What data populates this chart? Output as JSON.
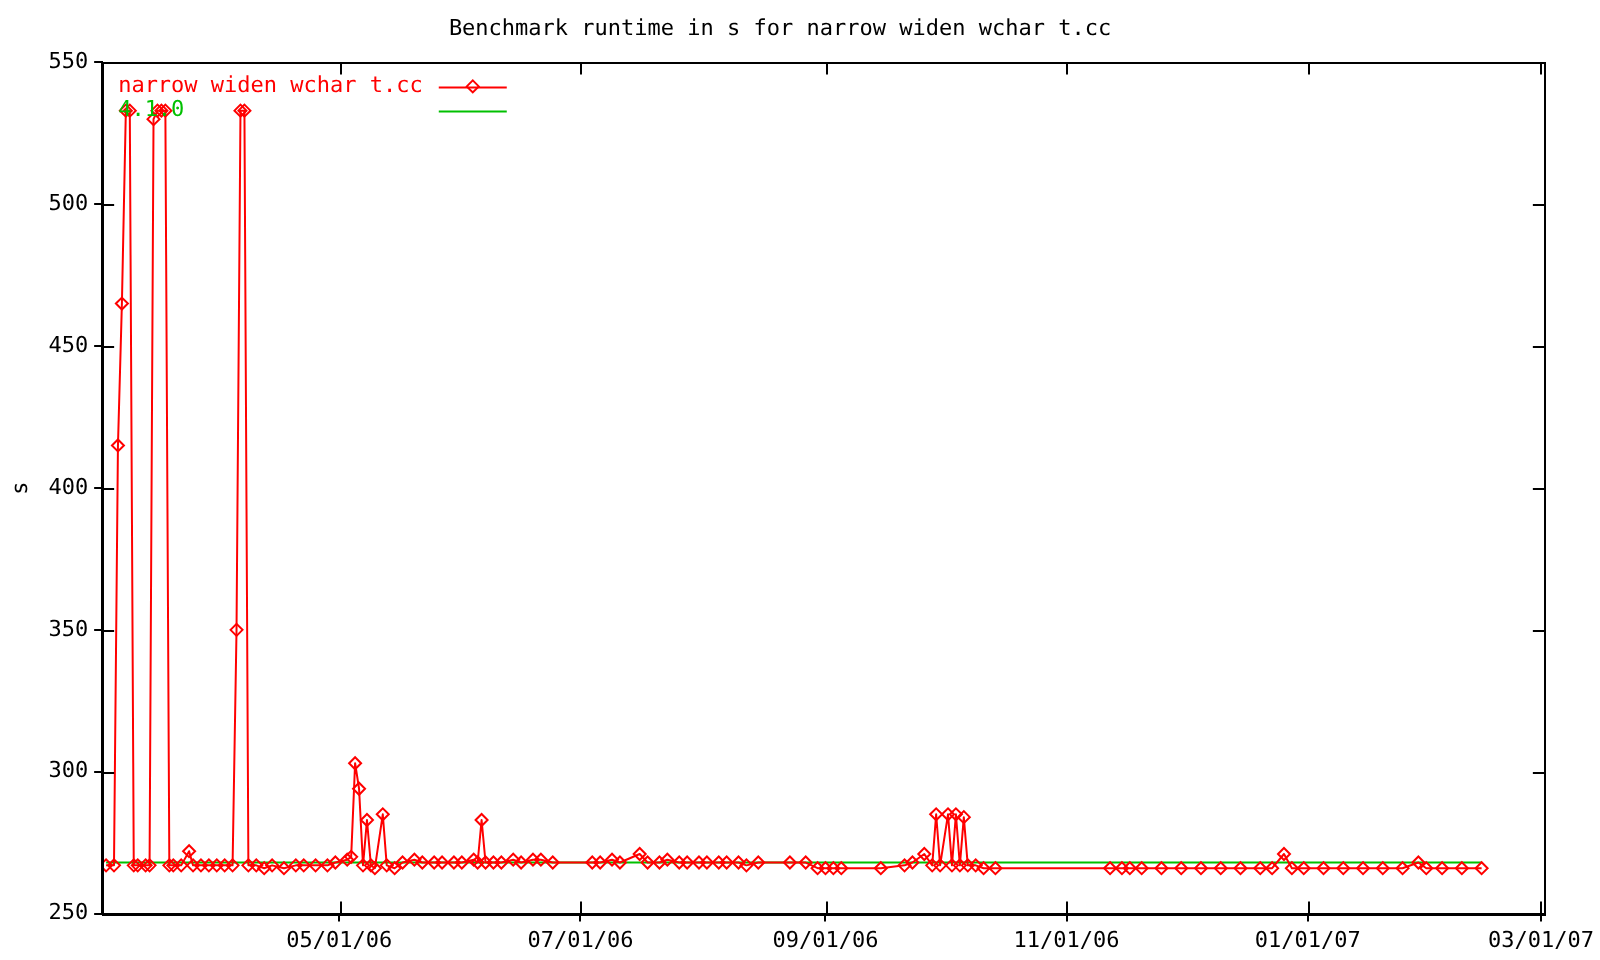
{
  "chart_data": {
    "type": "line",
    "title": "Benchmark runtime in s for narrow widen wchar t.cc",
    "ylabel": "s",
    "xlim": [
      "2006-03-02",
      "2007-03-02"
    ],
    "xticks": [
      {
        "value": "2006-05-01",
        "label": "05/01/06"
      },
      {
        "value": "2006-07-01",
        "label": "07/01/06"
      },
      {
        "value": "2006-09-01",
        "label": "09/01/06"
      },
      {
        "value": "2006-11-01",
        "label": "11/01/06"
      },
      {
        "value": "2007-01-01",
        "label": "01/01/07"
      },
      {
        "value": "2007-03-01",
        "label": "03/01/07"
      }
    ],
    "ylim": [
      250,
      550
    ],
    "yticks": [
      250,
      300,
      350,
      400,
      450,
      500,
      550
    ],
    "grid": false,
    "legend": "top left",
    "series": [
      {
        "name": "narrow widen wchar t.cc",
        "color": "#ff0000",
        "marker": "diamond",
        "x": [
          "2006-03-03",
          "2006-03-05",
          "2006-03-06",
          "2006-03-07",
          "2006-03-08",
          "2006-03-09",
          "2006-03-10",
          "2006-03-11",
          "2006-03-13",
          "2006-03-14",
          "2006-03-15",
          "2006-03-16",
          "2006-03-17",
          "2006-03-18",
          "2006-03-19",
          "2006-03-20",
          "2006-03-22",
          "2006-03-24",
          "2006-03-25",
          "2006-03-27",
          "2006-03-29",
          "2006-03-31",
          "2006-04-02",
          "2006-04-04",
          "2006-04-05",
          "2006-04-06",
          "2006-04-07",
          "2006-04-08",
          "2006-04-10",
          "2006-04-12",
          "2006-04-14",
          "2006-04-17",
          "2006-04-20",
          "2006-04-22",
          "2006-04-25",
          "2006-04-28",
          "2006-04-30",
          "2006-05-03",
          "2006-05-04",
          "2006-05-05",
          "2006-05-06",
          "2006-05-07",
          "2006-05-08",
          "2006-05-09",
          "2006-05-10",
          "2006-05-12",
          "2006-05-13",
          "2006-05-15",
          "2006-05-17",
          "2006-05-20",
          "2006-05-22",
          "2006-05-25",
          "2006-05-27",
          "2006-05-30",
          "2006-06-01",
          "2006-06-04",
          "2006-06-05",
          "2006-06-06",
          "2006-06-07",
          "2006-06-09",
          "2006-06-11",
          "2006-06-14",
          "2006-06-16",
          "2006-06-19",
          "2006-06-21",
          "2006-06-24",
          "2006-07-04",
          "2006-07-06",
          "2006-07-09",
          "2006-07-11",
          "2006-07-16",
          "2006-07-18",
          "2006-07-21",
          "2006-07-23",
          "2006-07-26",
          "2006-07-28",
          "2006-07-31",
          "2006-08-02",
          "2006-08-05",
          "2006-08-07",
          "2006-08-10",
          "2006-08-12",
          "2006-08-15",
          "2006-08-23",
          "2006-08-27",
          "2006-08-30",
          "2006-09-01",
          "2006-09-03",
          "2006-09-05",
          "2006-09-15",
          "2006-09-21",
          "2006-09-23",
          "2006-09-26",
          "2006-09-28",
          "2006-09-29",
          "2006-09-30",
          "2006-10-02",
          "2006-10-03",
          "2006-10-04",
          "2006-10-05",
          "2006-10-06",
          "2006-10-07",
          "2006-10-09",
          "2006-10-11",
          "2006-10-14",
          "2006-11-12",
          "2006-11-15",
          "2006-11-17",
          "2006-11-20",
          "2006-11-25",
          "2006-11-30",
          "2006-12-05",
          "2006-12-10",
          "2006-12-15",
          "2006-12-20",
          "2006-12-23",
          "2006-12-26",
          "2006-12-28",
          "2006-12-31",
          "2007-01-05",
          "2007-01-10",
          "2007-01-15",
          "2007-01-20",
          "2007-01-25",
          "2007-01-29",
          "2007-01-31",
          "2007-02-04",
          "2007-02-09",
          "2007-02-14"
        ],
        "values": [
          267,
          267,
          415,
          465,
          533,
          533,
          267,
          267,
          267,
          267,
          530,
          533,
          533,
          533,
          267,
          267,
          267,
          272,
          267,
          267,
          267,
          267,
          267,
          267,
          350,
          533,
          533,
          267,
          267,
          266,
          267,
          266,
          267,
          267,
          267,
          267,
          268,
          269,
          270,
          303,
          294,
          267,
          283,
          267,
          266,
          285,
          267,
          266,
          268,
          269,
          268,
          268,
          268,
          268,
          268,
          269,
          268,
          283,
          268,
          268,
          268,
          269,
          268,
          269,
          269,
          268,
          268,
          268,
          269,
          268,
          271,
          268,
          268,
          269,
          268,
          268,
          268,
          268,
          268,
          268,
          268,
          267,
          268,
          268,
          268,
          266,
          266,
          266,
          266,
          266,
          267,
          268,
          271,
          267,
          285,
          267,
          285,
          267,
          285,
          267,
          284,
          267,
          267,
          266,
          266,
          266,
          266,
          266,
          266,
          266,
          266,
          266,
          266,
          266,
          266,
          266,
          271,
          266,
          266,
          266,
          266,
          266,
          266,
          266,
          268,
          266,
          266,
          266,
          266
        ]
      },
      {
        "name": "4.1.0",
        "color": "#00c000",
        "marker": "none",
        "x": [
          "2006-03-03",
          "2007-02-14"
        ],
        "values": [
          268,
          268
        ]
      }
    ]
  }
}
